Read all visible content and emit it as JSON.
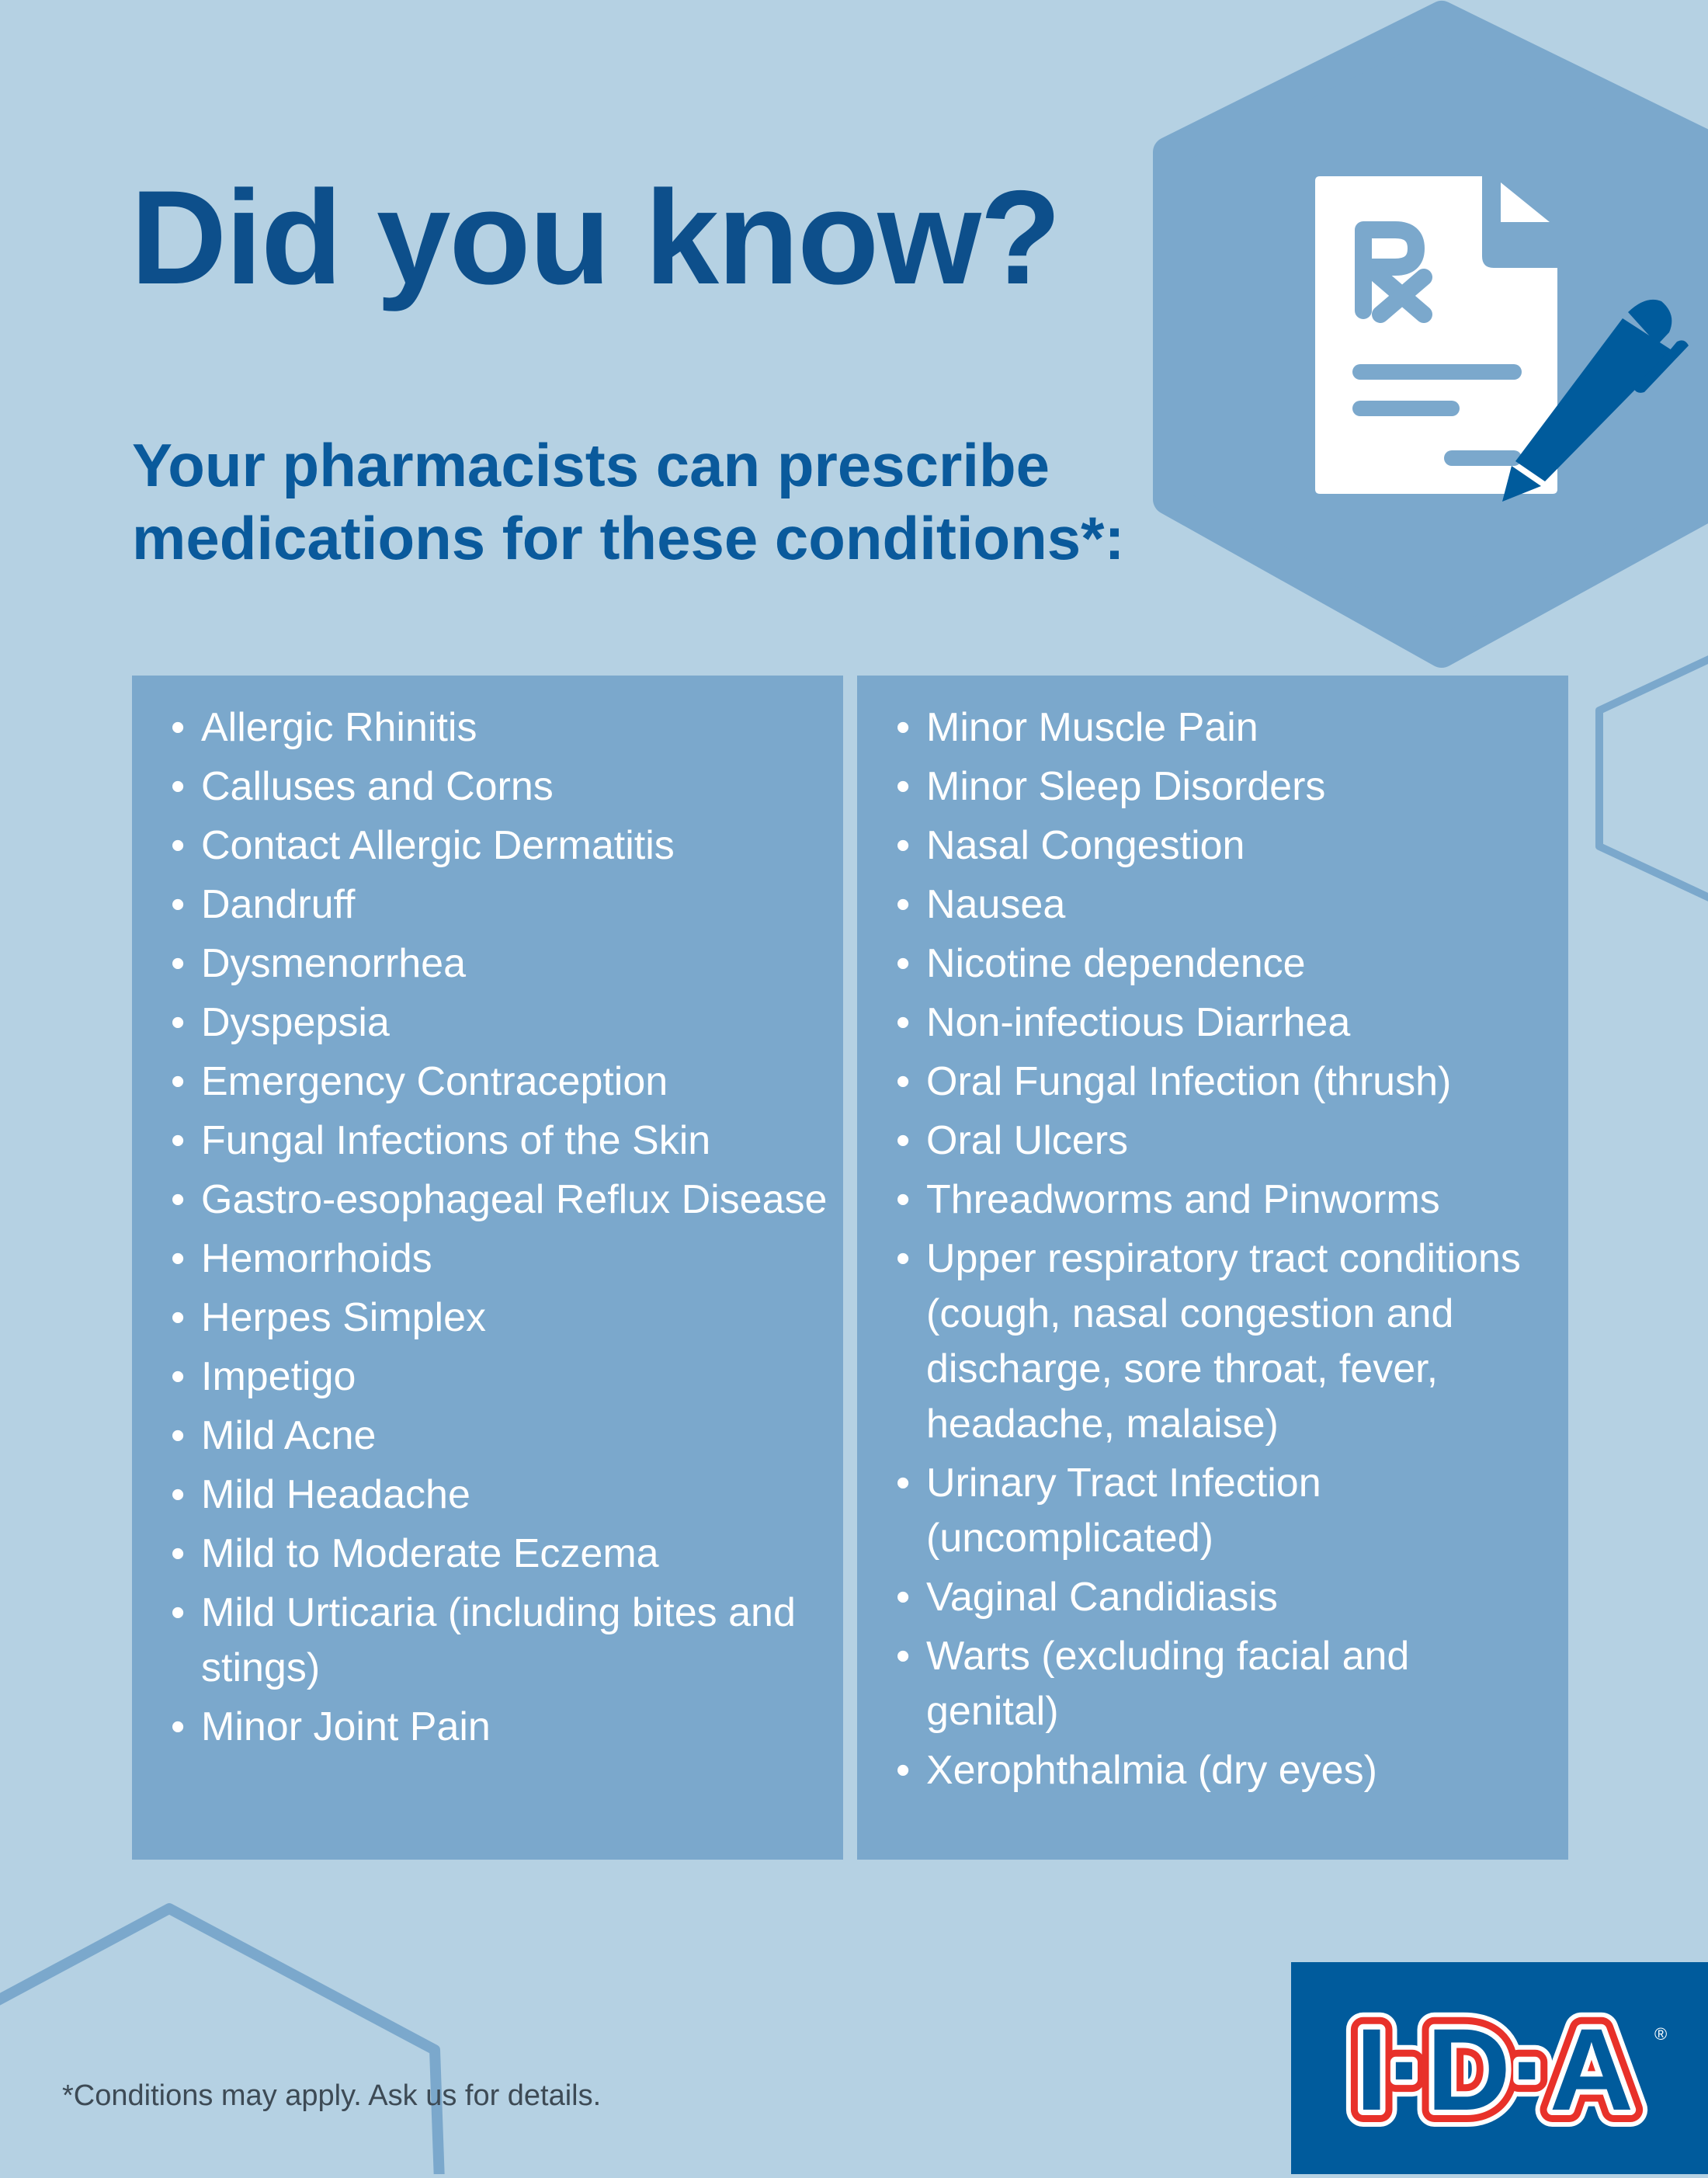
{
  "header": {
    "title": "Did you know?",
    "subtitle_line1": "Your pharmacists can prescribe",
    "subtitle_line2": "medications for these conditions*:"
  },
  "icons": {
    "hero": "prescription-document-with-pen-icon",
    "bullet": "•"
  },
  "conditions": {
    "left": [
      "Allergic Rhinitis",
      "Calluses and Corns",
      "Contact Allergic Dermatitis",
      "Dandruff",
      "Dysmenorrhea",
      "Dyspepsia",
      "Emergency Contraception",
      "Fungal Infections of the Skin",
      "Gastro-esophageal Reflux Disease",
      "Hemorrhoids",
      "Herpes Simplex",
      "Impetigo",
      "Mild Acne",
      "Mild Headache",
      "Mild to Moderate Eczema",
      "Mild Urticaria (including bites and stings)",
      "Minor Joint Pain"
    ],
    "right": [
      "Minor Muscle Pain",
      "Minor Sleep Disorders",
      "Nasal Congestion",
      "Nausea",
      "Nicotine dependence",
      "Non-infectious Diarrhea",
      "Oral Fungal Infection (thrush)",
      "Oral Ulcers",
      "Threadworms and Pinworms",
      "Upper respiratory tract conditions (cough, nasal congestion and discharge, sore throat, fever, headache, malaise)",
      "Urinary Tract Infection (uncomplicated)",
      "Vaginal Candidiasis",
      "Warts (excluding facial and genital)",
      "Xerophthalmia (dry eyes)"
    ]
  },
  "footer": {
    "footnote": "*Conditions may apply. Ask us for details."
  },
  "brand": {
    "logo_text": "I·D·A",
    "registered_mark": "®"
  },
  "colors": {
    "background": "#b5d1e3",
    "panel": "#7ba8cc",
    "title": "#0d4f8b",
    "brand_blue": "#005b9c",
    "brand_red": "#e8312a"
  }
}
